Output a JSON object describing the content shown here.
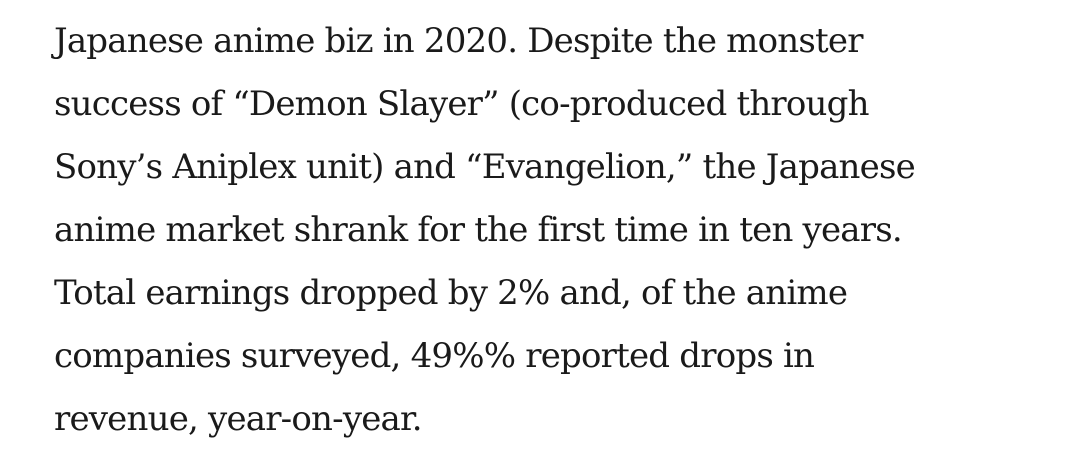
{
  "article": {
    "lines": [
      "Japanese anime biz in 2020. Despite the monster",
      "success of “Demon Slayer” (co-produced through",
      "Sony’s Aniplex unit) and “Evangelion,” the Japanese",
      "anime market shrank for the first time in ten years.",
      "Total earnings dropped by 2% and, of the anime",
      "companies surveyed, 49%% reported drops in",
      "revenue, year-on-year."
    ]
  }
}
